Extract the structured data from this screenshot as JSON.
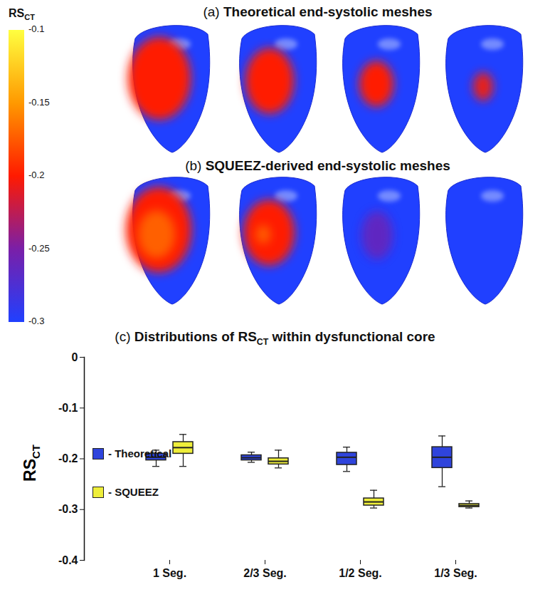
{
  "colorbar": {
    "title": [
      {
        "text": "RS"
      },
      {
        "text": "CT",
        "sub": true
      }
    ],
    "range": [
      -0.1,
      -0.3
    ],
    "ticks": [
      -0.1,
      -0.15,
      -0.2,
      -0.25,
      -0.3
    ],
    "colors": [
      "#ffff40",
      "#ff9900",
      "#ff1a00",
      "#7a1fa8",
      "#2040ff"
    ]
  },
  "panels": [
    {
      "label": "(a)",
      "title": "Theoretical end-systolic meshes"
    },
    {
      "label": "(b)",
      "title": "SQUEEZ-derived end-systolic meshes"
    }
  ],
  "chart_data": {
    "type": "box",
    "label": "(c)",
    "title": [
      {
        "text": "Distributions of RS"
      },
      {
        "text": "CT",
        "sub": true
      },
      {
        "text": " within dysfunctional core"
      }
    ],
    "y_label": [
      {
        "text": "RS"
      },
      {
        "text": "CT",
        "sub": true
      }
    ],
    "categories": [
      "1 Seg.",
      "2/3 Seg.",
      "1/2 Seg.",
      "1/3 Seg."
    ],
    "series": [
      {
        "name": "- Theoretical",
        "color": "#2f44dc",
        "values": [
          {
            "min": -0.215,
            "q1": -0.203,
            "median": -0.197,
            "q3": -0.19,
            "max": -0.183
          },
          {
            "min": -0.207,
            "q1": -0.203,
            "median": -0.198,
            "q3": -0.193,
            "max": -0.187
          },
          {
            "min": -0.225,
            "q1": -0.212,
            "median": -0.197,
            "q3": -0.188,
            "max": -0.177
          },
          {
            "min": -0.255,
            "q1": -0.218,
            "median": -0.197,
            "q3": -0.177,
            "max": -0.155
          }
        ]
      },
      {
        "name": "- SQUEEZ",
        "color": "#eeee3a",
        "values": [
          {
            "min": -0.215,
            "q1": -0.19,
            "median": -0.178,
            "q3": -0.167,
            "max": -0.152
          },
          {
            "min": -0.218,
            "q1": -0.211,
            "median": -0.205,
            "q3": -0.199,
            "max": -0.183
          },
          {
            "min": -0.297,
            "q1": -0.292,
            "median": -0.285,
            "q3": -0.278,
            "max": -0.262
          },
          {
            "min": -0.297,
            "q1": -0.295,
            "median": -0.292,
            "q3": -0.289,
            "max": -0.283
          }
        ]
      }
    ],
    "ylim": [
      -0.4,
      0
    ],
    "yticks": [
      -0.4,
      -0.3,
      -0.2,
      -0.1,
      0
    ],
    "legend": "left"
  }
}
